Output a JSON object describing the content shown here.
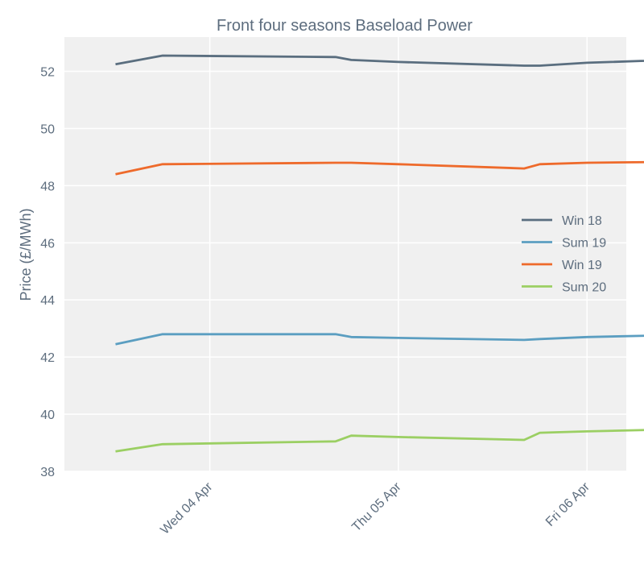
{
  "chart_data": {
    "type": "line",
    "title": "Front four seasons Baseload Power",
    "xlabel": "",
    "ylabel": "Price (£/MWh)",
    "x_ticks": [
      "Wed 04 Apr",
      "Thu 05 Apr",
      "Fri 06 Apr"
    ],
    "ylim": [
      38,
      53.2
    ],
    "y_ticks": [
      38,
      40,
      42,
      44,
      46,
      48,
      50,
      52
    ],
    "grid": true,
    "legend_position": "right",
    "x": [
      "2018-04-03 12:00",
      "2018-04-03 18:00",
      "2018-04-04 16:00",
      "2018-04-04 18:00",
      "2018-04-05 00:00",
      "2018-04-05 16:00",
      "2018-04-05 18:00",
      "2018-04-06 00:00",
      "2018-04-06 16:00",
      "2018-04-06 18:00"
    ],
    "series": [
      {
        "name": "Win 18",
        "color": "#5a6e7f",
        "values": [
          52.25,
          52.55,
          52.5,
          52.4,
          52.33,
          52.2,
          52.2,
          52.3,
          52.45,
          52.4
        ]
      },
      {
        "name": "Sum 19",
        "color": "#5b9ec1",
        "values": [
          42.45,
          42.8,
          42.8,
          42.7,
          42.67,
          42.6,
          42.63,
          42.7,
          42.8,
          42.75
        ]
      },
      {
        "name": "Win 19",
        "color": "#ee6a2b",
        "values": [
          48.4,
          48.75,
          48.8,
          48.8,
          48.75,
          48.6,
          48.75,
          48.8,
          48.85,
          48.8
        ]
      },
      {
        "name": "Sum 20",
        "color": "#9bcf63",
        "values": [
          38.7,
          38.95,
          39.05,
          39.25,
          39.2,
          39.1,
          39.35,
          39.4,
          39.5,
          39.7
        ]
      }
    ]
  }
}
